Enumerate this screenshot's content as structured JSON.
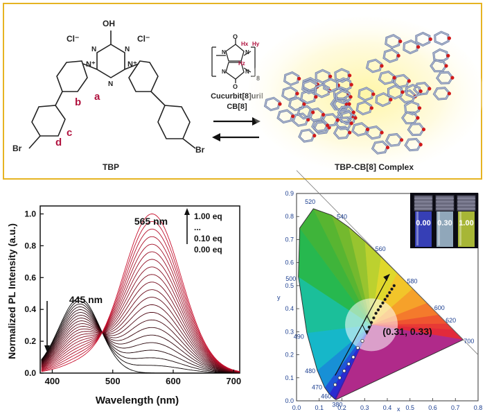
{
  "scheme": {
    "border_color": "#e6b422",
    "chloride": "Cl⁻",
    "hydroxyl": "OH",
    "bromine": "Br",
    "nitrogen": "N",
    "n_plus": "N⁺",
    "proton_labels": [
      "a",
      "b",
      "c",
      "d"
    ],
    "guest_label": "TBP",
    "host_name": "Cucurbit[8]uril",
    "host_abbrev": "CB[8]",
    "host_atoms": {
      "O": "O",
      "N": "N",
      "Hx": "Hx",
      "Hy": "Hy",
      "Hz": "Hz",
      "subscript": "8"
    },
    "complex_label": "TBP-CB[8] Complex",
    "label_color": "#b0123e"
  },
  "pl_chart": {
    "chart_data": {
      "type": "line",
      "xlabel": "Wavelength (nm)",
      "ylabel": "Normalized PL Intensity (a.u.)",
      "xlim": [
        380,
        710
      ],
      "ylim": [
        0,
        1.05
      ],
      "x_ticks": [
        "400",
        "500",
        "600",
        "700"
      ],
      "y_ticks": [
        "0.0",
        "0.2",
        "0.4",
        "0.6",
        "0.8",
        "1.0"
      ],
      "isosbestic_point": {
        "x": 500,
        "y": 0.2
      },
      "peaks": [
        {
          "label": "445 nm",
          "x": 445,
          "y": 0.47
        },
        {
          "label": "565 nm",
          "x": 565,
          "y": 1.0
        }
      ],
      "legend": [
        "1.00 eq",
        "...",
        "0.10 eq",
        "0.00 eq"
      ],
      "series_curve_count": 22,
      "blue_band_max": [
        0.47,
        0.05
      ],
      "yellow_band_max": [
        0.0,
        1.0
      ],
      "colors": {
        "start": "#000000",
        "end": "#c8102e"
      }
    }
  },
  "cie_chart": {
    "chart_data": {
      "type": "scatter",
      "xlabel": "x",
      "ylabel": "y",
      "xlim": [
        0.0,
        0.8
      ],
      "ylim": [
        0.0,
        0.9
      ],
      "x_ticks": [
        "0.0",
        "0.1",
        "0.2",
        "0.3",
        "0.4",
        "0.5",
        "0.6",
        "0.7",
        "0.8"
      ],
      "y_ticks": [
        "0.0",
        "0.1",
        "0.2",
        "0.3",
        "0.4",
        "0.5",
        "0.6",
        "0.7",
        "0.8",
        "0.9"
      ],
      "wavelength_labels": [
        "380",
        "460",
        "470",
        "480",
        "490",
        "500",
        "520",
        "540",
        "560",
        "580",
        "600",
        "620",
        "700"
      ],
      "trajectory_points": [
        {
          "x": 0.17,
          "y": 0.07
        },
        {
          "x": 0.19,
          "y": 0.1
        },
        {
          "x": 0.21,
          "y": 0.13
        },
        {
          "x": 0.23,
          "y": 0.16
        },
        {
          "x": 0.25,
          "y": 0.19
        },
        {
          "x": 0.27,
          "y": 0.23
        },
        {
          "x": 0.29,
          "y": 0.26
        },
        {
          "x": 0.31,
          "y": 0.3
        },
        {
          "x": 0.32,
          "y": 0.32
        },
        {
          "x": 0.33,
          "y": 0.34
        },
        {
          "x": 0.34,
          "y": 0.36
        },
        {
          "x": 0.35,
          "y": 0.38
        },
        {
          "x": 0.36,
          "y": 0.395
        },
        {
          "x": 0.37,
          "y": 0.41
        },
        {
          "x": 0.38,
          "y": 0.425
        },
        {
          "x": 0.39,
          "y": 0.44
        },
        {
          "x": 0.4,
          "y": 0.455
        },
        {
          "x": 0.41,
          "y": 0.47
        },
        {
          "x": 0.42,
          "y": 0.485
        },
        {
          "x": 0.43,
          "y": 0.5
        }
      ],
      "white_point_label": "(0.31, 0.33)",
      "white_point": {
        "x": 0.31,
        "y": 0.33
      },
      "arrow": {
        "from": [
          0.17,
          0.11
        ],
        "to": [
          0.41,
          0.55
        ]
      },
      "vial_labels": [
        "0.00",
        "0.30",
        "1.00"
      ],
      "vial_colors": [
        "#3b45c8",
        "#9fb8cc",
        "#b8c93a"
      ]
    }
  }
}
